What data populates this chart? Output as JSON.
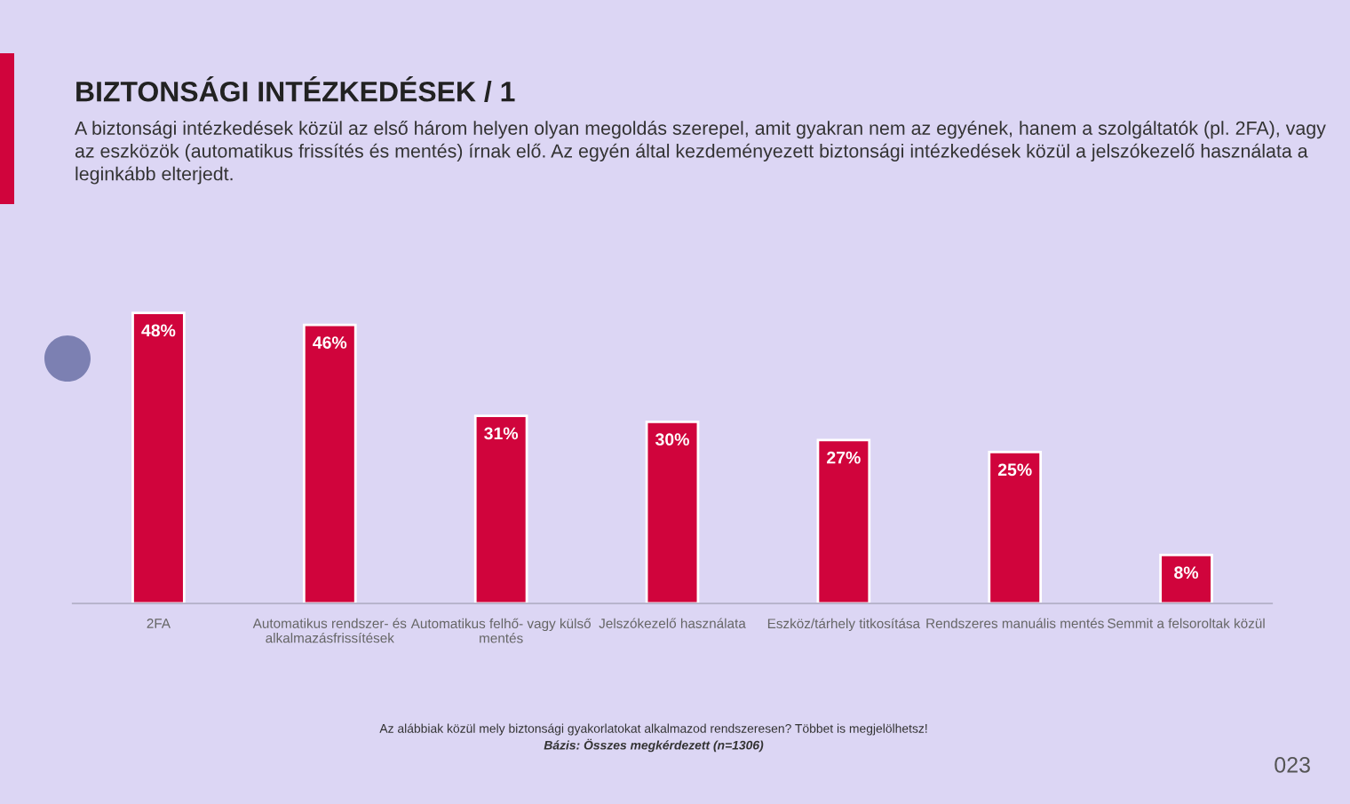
{
  "chart_data": {
    "type": "bar",
    "title": "BIZTONSÁGI INTÉZKEDÉSEK / 1",
    "subtitle": "A biztonsági intézkedések közül az első három helyen olyan megoldás szerepel, amit gyakran nem az egyének, hanem a szolgáltatók (pl. 2FA), vagy az eszközök (automatikus frissítés és mentés) írnak elő. Az egyén által kezdeményezett biztonsági intézkedések közül a jelszókezelő használata a leginkább elterjedt.",
    "categories": [
      "2FA",
      "Automatikus rendszer- és\nalkalmazásfrissítések",
      "Automatikus felhő- vagy külső\nmentés",
      "Jelszókezelő használata",
      "Eszköz/tárhely titkosítása",
      "Rendszeres manuális mentés",
      "Semmit a felsoroltak közül"
    ],
    "values": [
      48,
      46,
      31,
      30,
      27,
      25,
      8
    ],
    "value_labels": [
      "48%",
      "46%",
      "31%",
      "30%",
      "27%",
      "25%",
      "8%"
    ],
    "color": "#d0043c",
    "annotations": [
      "Az alábbiak közül mely biztonsági gyakorlatokat alkalmazod rendszeresen? Többet is megjelölhetsz!",
      "Bázis: Összes megkérdezett (n=1306)",
      "023"
    ]
  }
}
